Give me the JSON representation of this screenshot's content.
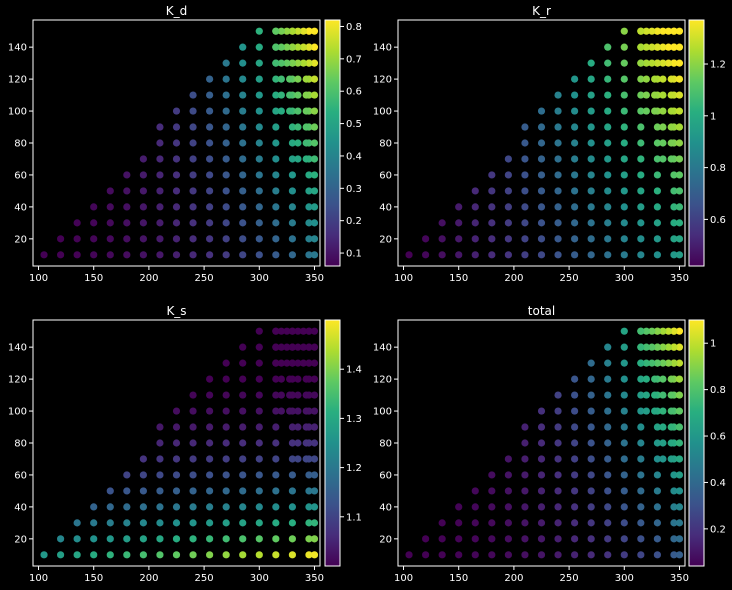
{
  "chart_data": [
    {
      "type": "scatter",
      "title": "K_d",
      "xlim": [
        95,
        355
      ],
      "ylim": [
        3,
        157
      ],
      "xticks": [
        100,
        150,
        200,
        250,
        300,
        350
      ],
      "yticks": [
        20,
        40,
        60,
        80,
        100,
        120,
        140
      ],
      "colorbar": {
        "min": 0.06,
        "max": 0.82,
        "ticks": [
          0.1,
          0.2,
          0.3,
          0.4,
          0.5,
          0.6,
          0.7,
          0.8
        ],
        "colormap": "viridis"
      },
      "x_grid": [
        105,
        120,
        135,
        150,
        165,
        180,
        195,
        210,
        225,
        240,
        255,
        270,
        285,
        300,
        315,
        330,
        345
      ],
      "y_grid": [
        10,
        20,
        30,
        40,
        50,
        60,
        70,
        80,
        90,
        100,
        110,
        120,
        130,
        140,
        150
      ],
      "color_trend": "rises with x; strongest along the right edge and at high y",
      "value_range": [
        0.06,
        0.82
      ]
    },
    {
      "type": "scatter",
      "title": "K_r",
      "xlim": [
        95,
        355
      ],
      "ylim": [
        3,
        157
      ],
      "xticks": [
        100,
        150,
        200,
        250,
        300,
        350
      ],
      "yticks": [
        20,
        40,
        60,
        80,
        100,
        120,
        140
      ],
      "colorbar": {
        "min": 0.42,
        "max": 1.37,
        "ticks": [
          0.6,
          0.8,
          1.0,
          1.2
        ],
        "colormap": "viridis"
      },
      "x_grid": [
        105,
        120,
        135,
        150,
        165,
        180,
        195,
        210,
        225,
        240,
        255,
        270,
        285,
        300,
        315,
        330,
        345
      ],
      "y_grid": [
        10,
        20,
        30,
        40,
        50,
        60,
        70,
        80,
        90,
        100,
        110,
        120,
        130,
        140,
        150
      ],
      "color_trend": "rises with x; highest on the right at high y",
      "value_range": [
        0.42,
        1.37
      ]
    },
    {
      "type": "scatter",
      "title": "K_s",
      "xlim": [
        95,
        355
      ],
      "ylim": [
        3,
        157
      ],
      "xticks": [
        100,
        150,
        200,
        250,
        300,
        350
      ],
      "yticks": [
        20,
        40,
        60,
        80,
        100,
        120,
        140
      ],
      "colorbar": {
        "min": 1.0,
        "max": 1.5,
        "ticks": [
          1.1,
          1.2,
          1.3,
          1.4
        ],
        "colormap": "viridis"
      },
      "x_grid": [
        105,
        120,
        135,
        150,
        165,
        180,
        195,
        210,
        225,
        240,
        255,
        270,
        285,
        300,
        315,
        330,
        345
      ],
      "y_grid": [
        10,
        20,
        30,
        40,
        50,
        60,
        70,
        80,
        90,
        100,
        110,
        120,
        130,
        140,
        150
      ],
      "color_trend": "falls with y; highest in the bottom row",
      "value_range": [
        1.0,
        1.5
      ]
    },
    {
      "type": "scatter",
      "title": "total",
      "xlim": [
        95,
        355
      ],
      "ylim": [
        3,
        157
      ],
      "xticks": [
        100,
        150,
        200,
        250,
        300,
        350
      ],
      "yticks": [
        20,
        40,
        60,
        80,
        100,
        120,
        140
      ],
      "colorbar": {
        "min": 0.04,
        "max": 1.1,
        "ticks": [
          0.2,
          0.4,
          0.6,
          0.8,
          1.0
        ],
        "colormap": "viridis"
      },
      "x_grid": [
        105,
        120,
        135,
        150,
        165,
        180,
        195,
        210,
        225,
        240,
        255,
        270,
        285,
        300,
        315,
        330,
        345
      ],
      "y_grid": [
        10,
        20,
        30,
        40,
        50,
        60,
        70,
        80,
        90,
        100,
        110,
        120,
        130,
        140,
        150
      ],
      "color_trend": "rises with x; strongest along the right edge and at high y",
      "value_range": [
        0.04,
        1.1
      ]
    }
  ]
}
